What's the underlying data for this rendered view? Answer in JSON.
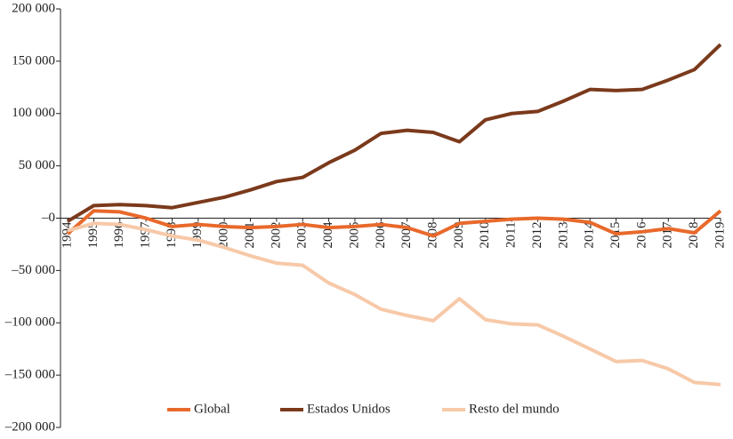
{
  "chart_data": {
    "type": "line",
    "categories": [
      "1994",
      "1995",
      "1996",
      "1997",
      "1998",
      "1999",
      "2000",
      "2001",
      "2002",
      "2003",
      "2004",
      "2005",
      "2006",
      "2007",
      "2008",
      "2009",
      "2010",
      "2011",
      "2012",
      "2013",
      "2014",
      "2015",
      "2016",
      "2017",
      "2018",
      "2019"
    ],
    "series": [
      {
        "name": "Global",
        "color": "#e8692b",
        "values": [
          -15000,
          7000,
          6000,
          0,
          -8000,
          -6000,
          -8000,
          -9000,
          -8000,
          -6000,
          -9000,
          -8000,
          -6000,
          -9000,
          -17000,
          -5000,
          -3000,
          -1000,
          0,
          -1000,
          -4000,
          -15000,
          -13000,
          -10000,
          -14000,
          7000
        ]
      },
      {
        "name": "Estados Unidos",
        "color": "#7b3a1c",
        "values": [
          -3000,
          12000,
          13000,
          12000,
          10000,
          15000,
          20000,
          27000,
          35000,
          39000,
          53000,
          65000,
          81000,
          84000,
          82000,
          73000,
          94000,
          100000,
          102000,
          112000,
          123000,
          122000,
          123000,
          132000,
          142000,
          166000
        ]
      },
      {
        "name": "Resto del mundo",
        "color": "#f7c9a8",
        "values": [
          -12000,
          -5000,
          -6000,
          -11000,
          -17000,
          -21000,
          -28000,
          -36000,
          -43000,
          -45000,
          -62000,
          -73000,
          -87000,
          -93000,
          -98000,
          -77000,
          -97000,
          -101000,
          -102000,
          -113000,
          -125000,
          -137000,
          -136000,
          -144000,
          -157000,
          -159000
        ]
      }
    ],
    "ylim": [
      -200000,
      200000
    ],
    "yticks": [
      {
        "value": 200000,
        "label": "200 000"
      },
      {
        "value": 150000,
        "label": "150 000"
      },
      {
        "value": 100000,
        "label": "100 000"
      },
      {
        "value": 50000,
        "label": "50 000"
      },
      {
        "value": 0,
        "label": "–0"
      },
      {
        "value": -50000,
        "label": "–50 000"
      },
      {
        "value": -100000,
        "label": "–100 000"
      },
      {
        "value": -150000,
        "label": "–150 000"
      },
      {
        "value": -200000,
        "label": "–200 000"
      }
    ],
    "legend": "bottom"
  }
}
